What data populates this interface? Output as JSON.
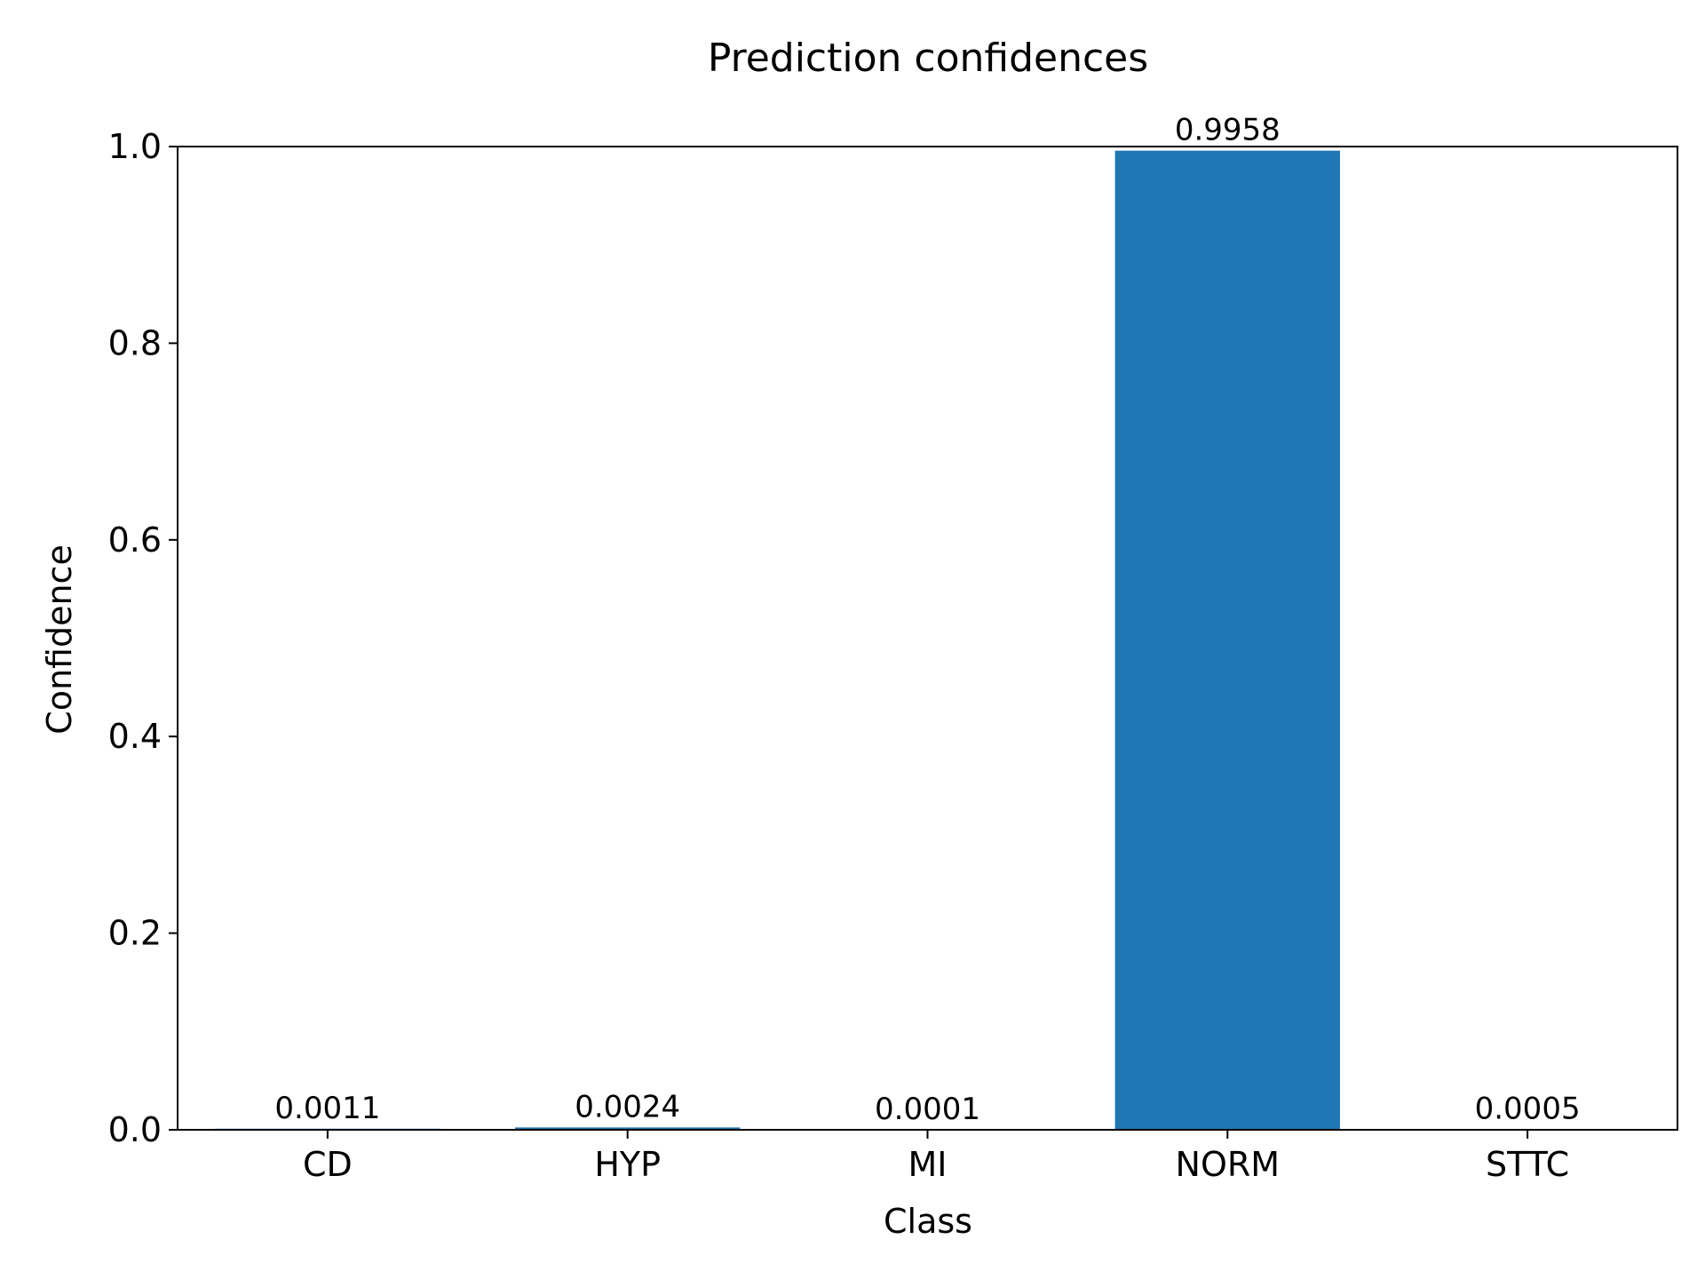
{
  "chart_data": {
    "type": "bar",
    "title": "Prediction confidences",
    "xlabel": "Class",
    "ylabel": "Confidence",
    "categories": [
      "CD",
      "HYP",
      "MI",
      "NORM",
      "STTC"
    ],
    "values": [
      0.0011,
      0.0024,
      0.0001,
      0.9958,
      0.0005
    ],
    "value_labels": [
      "0.0011",
      "0.0024",
      "0.0001",
      "0.9958",
      "0.0005"
    ],
    "ylim": [
      0,
      1.0
    ],
    "yticks": [
      0.0,
      0.2,
      0.4,
      0.6,
      0.8,
      1.0
    ],
    "ytick_labels": [
      "0.0",
      "0.2",
      "0.4",
      "0.6",
      "0.8",
      "1.0"
    ],
    "bar_color": "#1f77b4",
    "grid": false,
    "legend": "none"
  }
}
